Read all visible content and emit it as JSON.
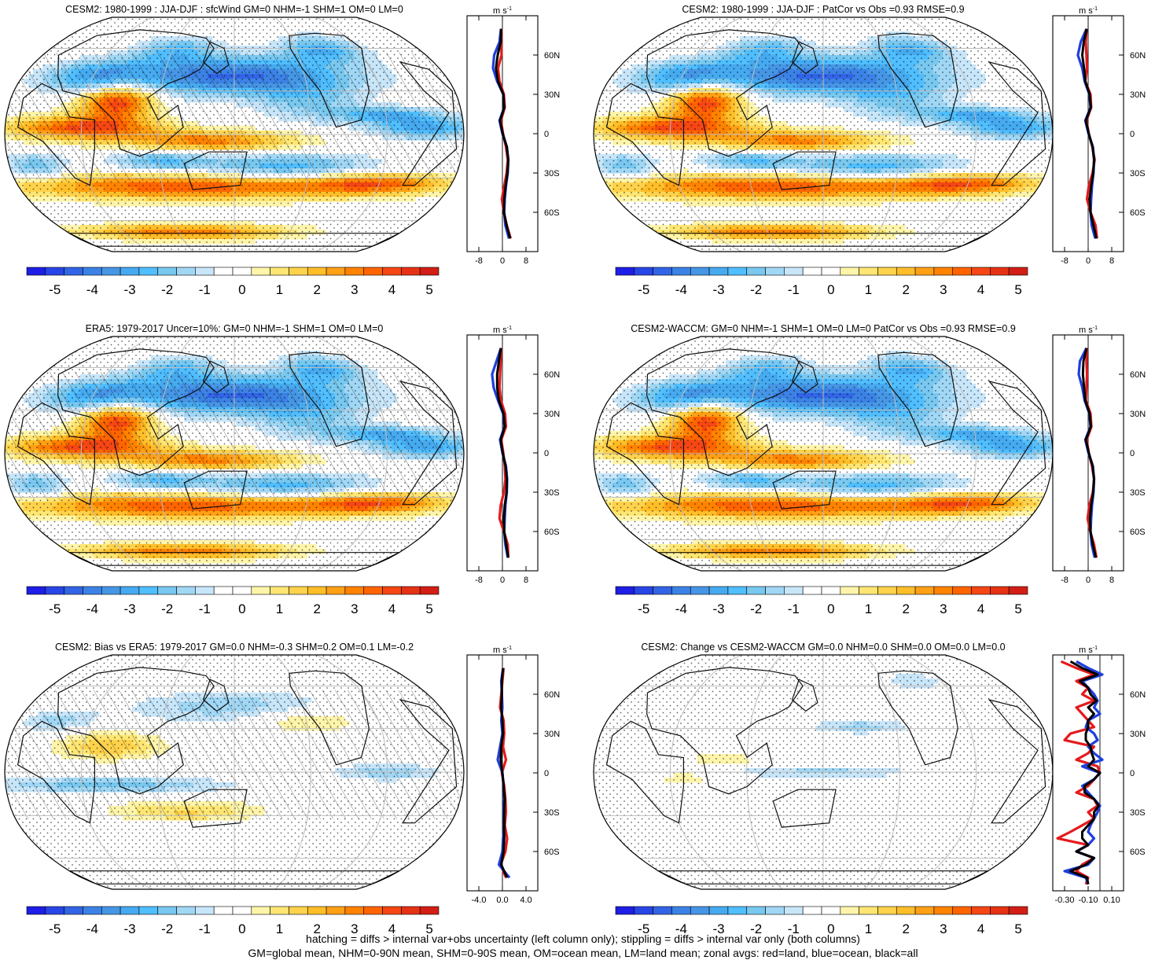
{
  "palette": {
    "levels": [
      -5.5,
      -5,
      -4.5,
      -4,
      -3.5,
      -3,
      -2.5,
      -2,
      -1.5,
      -1,
      -0.5,
      0,
      0.5,
      1,
      1.5,
      2,
      2.5,
      3,
      3.5,
      4,
      4.5,
      5,
      5.5
    ],
    "colors": [
      "#1e1ee6",
      "#2846e6",
      "#3264e6",
      "#3c82e6",
      "#4696e6",
      "#46aaf0",
      "#50beff",
      "#78c8f0",
      "#a0d7f5",
      "#c8e6fa",
      "#ffffff",
      "#ffffff",
      "#fff5aa",
      "#ffe673",
      "#ffd24b",
      "#ffbe28",
      "#ffa014",
      "#ff8200",
      "#ff6400",
      "#f54614",
      "#e63214",
      "#d21e14"
    ],
    "ticks": [
      "-5",
      "-4",
      "-3",
      "-2",
      "-1",
      "0",
      "1",
      "2",
      "3",
      "4",
      "5"
    ],
    "land_color": "#111111",
    "graticule_color": "#bdbdbd"
  },
  "profile_legend": {
    "land": "#e41a1c",
    "ocean": "#1f3fdc",
    "all": "#000000"
  },
  "chart_data": [
    {
      "type": "heatmap",
      "title": "CESM2: 1980-1999 : JJA-DJF : sfcWind GM=0 NHM=-1 SHM=1 OM=0 LM=0",
      "units": "m s-1",
      "projection": "Robinson",
      "latitude_bands": [
        "60N",
        "30N",
        "0",
        "30S",
        "60S"
      ],
      "zonal_profile": {
        "type": "line",
        "xlim": [
          -12,
          12
        ],
        "xticks": [
          "-8",
          "0",
          "8"
        ],
        "ylim": [
          -90,
          90
        ],
        "yticks": [
          "60N",
          "30N",
          "0",
          "30S",
          "60S"
        ],
        "lat": [
          80,
          70,
          60,
          50,
          40,
          30,
          20,
          10,
          0,
          -10,
          -20,
          -30,
          -40,
          -50,
          -60,
          -70,
          -80
        ],
        "series": [
          {
            "name": "land",
            "values": [
              -0.3,
              -0.4,
              -0.3,
              -1.5,
              -1.0,
              0.5,
              0.8,
              -0.5,
              0.2,
              1.2,
              1.8,
              1.4,
              0.6,
              -0.2,
              0.5,
              1.5,
              2.8
            ]
          },
          {
            "name": "ocean",
            "values": [
              -0.5,
              -1.0,
              -2.8,
              -3.2,
              -1.8,
              0.3,
              0.6,
              -1.0,
              0.0,
              1.5,
              2.0,
              1.8,
              1.2,
              0.8,
              0.6,
              1.0,
              2.2
            ]
          },
          {
            "name": "all",
            "values": [
              -0.4,
              -0.6,
              -1.6,
              -2.2,
              -1.5,
              0.3,
              0.6,
              -0.8,
              0.1,
              1.5,
              2.0,
              1.7,
              1.1,
              0.6,
              0.5,
              1.4,
              2.6
            ]
          }
        ]
      }
    },
    {
      "type": "heatmap",
      "title": "CESM2: 1980-1999 : JJA-DJF : PatCor vs Obs =0.93 RMSE=0.9",
      "units": "m s-1",
      "projection": "Robinson",
      "latitude_bands": [
        "60N",
        "30N",
        "0",
        "30S",
        "60S"
      ],
      "zonal_profile": {
        "type": "line",
        "xlim": [
          -12,
          12
        ],
        "xticks": [
          "-8",
          "0",
          "8"
        ],
        "ylim": [
          -90,
          90
        ],
        "yticks": [
          "60N",
          "30N",
          "0",
          "30S",
          "60S"
        ],
        "lat": [
          80,
          70,
          60,
          50,
          40,
          30,
          20,
          10,
          0,
          -10,
          -20,
          -30,
          -40,
          -50,
          -60,
          -70,
          -80
        ],
        "series": [
          {
            "name": "land",
            "values": [
              -0.5,
              -0.8,
              -0.6,
              -0.4,
              -1.0,
              0.8,
              1.0,
              -0.6,
              0.2,
              1.4,
              2.2,
              1.5,
              0.2,
              -0.4,
              0.8,
              2.5,
              3.0
            ]
          },
          {
            "name": "ocean",
            "values": [
              -0.6,
              -2.5,
              -3.5,
              -2.0,
              -1.2,
              0.4,
              0.8,
              -1.0,
              0.1,
              1.6,
              2.0,
              1.8,
              1.3,
              1.0,
              0.8,
              1.2,
              2.4
            ]
          },
          {
            "name": "all",
            "values": [
              -0.5,
              -1.5,
              -2.0,
              -1.4,
              -1.0,
              0.5,
              0.9,
              -0.8,
              0.2,
              1.5,
              2.0,
              1.7,
              1.0,
              0.5,
              0.8,
              1.8,
              2.8
            ]
          }
        ]
      }
    },
    {
      "type": "heatmap",
      "title": "ERA5: 1979-2017 Uncer=10%: GM=0 NHM=-1 SHM=1 OM=0 LM=0",
      "units": "m s-1",
      "projection": "Robinson",
      "latitude_bands": [
        "60N",
        "30N",
        "0",
        "30S",
        "60S"
      ],
      "zonal_profile": {
        "type": "line",
        "xlim": [
          -12,
          12
        ],
        "xticks": [
          "-8",
          "0",
          "8"
        ],
        "ylim": [
          -90,
          90
        ],
        "yticks": [
          "60N",
          "30N",
          "0",
          "30S",
          "60S"
        ],
        "lat": [
          80,
          70,
          60,
          50,
          40,
          30,
          20,
          10,
          0,
          -10,
          -20,
          -30,
          -40,
          -50,
          -60,
          -70,
          -80
        ],
        "series": [
          {
            "name": "land",
            "values": [
              -0.4,
              -0.6,
              -0.8,
              -1.0,
              -0.5,
              0.9,
              1.2,
              -0.4,
              0.3,
              0.8,
              1.0,
              0.5,
              -0.6,
              -1.0,
              0.5,
              1.8,
              2.0
            ]
          },
          {
            "name": "ocean",
            "values": [
              -0.5,
              -2.0,
              -3.5,
              -3.0,
              -1.5,
              0.2,
              0.7,
              -0.8,
              0.0,
              1.2,
              1.6,
              1.5,
              1.0,
              0.8,
              0.6,
              1.0,
              1.8
            ]
          },
          {
            "name": "all",
            "values": [
              -0.5,
              -1.2,
              -1.8,
              -1.8,
              -1.2,
              0.4,
              0.8,
              -0.6,
              0.1,
              1.1,
              1.5,
              1.4,
              0.8,
              0.5,
              0.6,
              1.3,
              2.0
            ]
          }
        ]
      }
    },
    {
      "type": "heatmap",
      "title": "CESM2-WACCM: GM=0 NHM=-1 SHM=1 OM=0 LM=0 PatCor vs Obs =0.93 RMSE=0.9",
      "units": "m s-1",
      "projection": "Robinson",
      "latitude_bands": [
        "60N",
        "30N",
        "0",
        "30S",
        "60S"
      ],
      "zonal_profile": {
        "type": "line",
        "xlim": [
          -12,
          12
        ],
        "xticks": [
          "-8",
          "0",
          "8"
        ],
        "ylim": [
          -90,
          90
        ],
        "yticks": [
          "60N",
          "30N",
          "0",
          "30S",
          "60S"
        ],
        "lat": [
          80,
          70,
          60,
          50,
          40,
          30,
          20,
          10,
          0,
          -10,
          -20,
          -30,
          -40,
          -50,
          -60,
          -70,
          -80
        ],
        "series": [
          {
            "name": "land",
            "values": [
              -0.4,
              -0.6,
              -0.4,
              -0.6,
              -0.8,
              0.8,
              1.1,
              -0.5,
              0.2,
              1.3,
              2.0,
              1.6,
              0.4,
              -0.2,
              0.7,
              2.0,
              2.8
            ]
          },
          {
            "name": "ocean",
            "values": [
              -0.6,
              -2.8,
              -3.2,
              -2.0,
              -1.2,
              0.4,
              0.8,
              -1.0,
              0.1,
              1.6,
              2.0,
              1.8,
              1.3,
              1.0,
              0.8,
              1.2,
              2.2
            ]
          },
          {
            "name": "all",
            "values": [
              -0.5,
              -1.6,
              -1.8,
              -1.4,
              -1.0,
              0.5,
              0.9,
              -0.8,
              0.2,
              1.5,
              2.0,
              1.7,
              1.0,
              0.6,
              0.8,
              1.6,
              2.6
            ]
          }
        ]
      }
    },
    {
      "type": "heatmap",
      "title": "CESM2: Bias vs ERA5: 1979-2017 GM=0.0 NHM=-0.3 SHM=0.2 OM=0.1 LM=-0.2",
      "units": "m s-1",
      "projection": "Robinson",
      "latitude_bands": [
        "60N",
        "30N",
        "0",
        "30S",
        "60S"
      ],
      "zonal_profile": {
        "type": "line",
        "xlim": [
          -6,
          6
        ],
        "xticks": [
          "-4.0",
          "0.0",
          "4.0"
        ],
        "ylim": [
          -90,
          90
        ],
        "yticks": [
          "60N",
          "30N",
          "0",
          "30S",
          "60S"
        ],
        "lat": [
          80,
          70,
          60,
          50,
          40,
          30,
          20,
          10,
          0,
          -10,
          -20,
          -30,
          -40,
          -50,
          -60,
          -70,
          -80
        ],
        "series": [
          {
            "name": "land",
            "values": [
              0.2,
              0.0,
              -0.2,
              -0.4,
              0.2,
              0.3,
              0.1,
              0.6,
              -0.1,
              0.3,
              0.5,
              0.6,
              0.4,
              0.8,
              0.5,
              -0.3,
              0.6
            ]
          },
          {
            "name": "ocean",
            "values": [
              0.1,
              -0.2,
              -0.1,
              0.0,
              -0.2,
              0.0,
              -0.4,
              -0.8,
              0.0,
              0.2,
              0.3,
              0.2,
              0.3,
              0.1,
              0.0,
              -0.6,
              1.2
            ]
          },
          {
            "name": "all",
            "values": [
              0.1,
              -0.1,
              -0.1,
              -0.2,
              0.0,
              0.1,
              -0.2,
              -0.3,
              0.0,
              0.2,
              0.4,
              0.3,
              0.3,
              0.3,
              0.2,
              -0.2,
              0.8
            ]
          }
        ]
      }
    },
    {
      "type": "heatmap",
      "title": "CESM2: Change vs CESM2-WACCM GM=0.0 NHM=0.0 SHM=0.0 OM=0.0 LM=0.0",
      "units": "m s-1",
      "projection": "Robinson",
      "latitude_bands": [
        "60N",
        "30N",
        "0",
        "30S",
        "60S"
      ],
      "zonal_profile": {
        "type": "line",
        "xlim": [
          -0.4,
          0.2
        ],
        "xticks": [
          "-0.30",
          "-0.10",
          "0.10"
        ],
        "ylim": [
          -90,
          90
        ],
        "yticks": [
          "60N",
          "30N",
          "0",
          "30S",
          "60S"
        ],
        "lat": [
          85,
          80,
          75,
          70,
          65,
          60,
          55,
          50,
          45,
          40,
          35,
          30,
          25,
          20,
          15,
          10,
          5,
          0,
          -5,
          -10,
          -15,
          -20,
          -25,
          -30,
          -35,
          -40,
          -45,
          -50,
          -55,
          -60,
          -65,
          -70,
          -75,
          -80,
          -85
        ],
        "series": [
          {
            "name": "land",
            "values": [
              -0.33,
              -0.2,
              -0.05,
              -0.2,
              -0.1,
              -0.15,
              -0.05,
              -0.2,
              -0.15,
              -0.1,
              -0.05,
              -0.25,
              -0.3,
              -0.05,
              -0.1,
              -0.2,
              -0.02,
              0.0,
              -0.05,
              -0.1,
              -0.2,
              -0.05,
              -0.02,
              -0.1,
              -0.05,
              -0.15,
              -0.25,
              -0.36,
              -0.1,
              -0.2,
              -0.05,
              -0.15,
              -0.2,
              -0.1,
              -0.12
            ]
          },
          {
            "name": "ocean",
            "values": [
              -0.2,
              -0.1,
              0.02,
              -0.15,
              -0.1,
              -0.05,
              -0.02,
              -0.05,
              0.0,
              -0.1,
              -0.12,
              -0.05,
              -0.02,
              -0.1,
              -0.05,
              0.02,
              -0.15,
              0.0,
              -0.05,
              -0.15,
              -0.1,
              -0.05,
              0.0,
              -0.02,
              -0.05,
              -0.08,
              -0.1,
              -0.05,
              -0.1,
              -0.2,
              -0.05,
              -0.1,
              -0.3,
              -0.12,
              -0.1
            ]
          },
          {
            "name": "all",
            "values": [
              -0.25,
              -0.15,
              -0.02,
              -0.17,
              -0.1,
              -0.08,
              -0.03,
              -0.1,
              -0.05,
              -0.1,
              -0.1,
              -0.12,
              -0.12,
              -0.08,
              -0.07,
              -0.05,
              -0.1,
              0.0,
              -0.05,
              -0.13,
              -0.13,
              -0.05,
              -0.01,
              -0.05,
              -0.05,
              -0.1,
              -0.15,
              -0.15,
              -0.1,
              -0.2,
              -0.05,
              -0.12,
              -0.25,
              -0.11,
              -0.1
            ]
          }
        ]
      }
    }
  ],
  "footer": {
    "line1": "hatching = diffs > internal var+obs uncertainty (left column only); stippling = diffs > internal var only (both columns)",
    "line2": "GM=global mean, NHM=0-90N mean, SHM=0-90S mean, OM=ocean mean, LM=land mean; zonal avgs: red=land, blue=ocean, black=all"
  }
}
